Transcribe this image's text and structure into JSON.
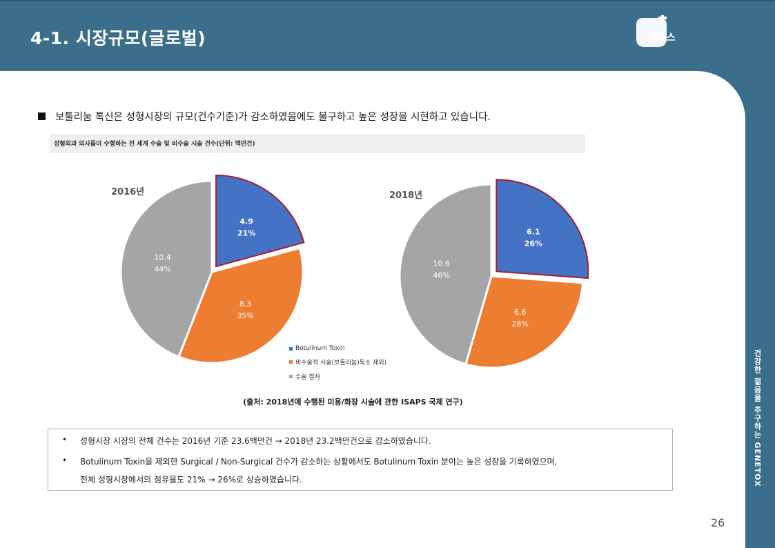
{
  "slide": {
    "title": "4-1. 시장규모(글로벌)",
    "logo_text": "제녹스",
    "side_caption": "건강한 젊음을 추구하는 GENETOX",
    "page_number": "26",
    "headline": "보툴리눔 톡신은 성형시장의 규모(건수기준)가 감소하였음에도 불구하고 높은 성장을 시현하고 있습니다.",
    "chart_heading": "성형외과 의사들이 수행하는 전 세계 수술 및 비수술 시술 건수(단위: 백만건)",
    "source": "(출처: 2018년에 수행된 미용/화장 시술에 관한 ISAPS 국제 연구)",
    "notes": [
      "성형시장 시장의 전체 건수는 2016년 기준 23.6백만건 → 2018년 23.2백만건으로 감소하였습니다.",
      "Botulinum Toxin을 제외한 Surgical / Non-Surgical 건수가 감소하는 상황에서도 Botulinum Toxin 분야는 높은 성장을 기록하였으며,",
      "전체 성형시장에서의 점유율도 21% → 26%로 상승하였습니다."
    ],
    "bullet": "•"
  },
  "chart_data": [
    {
      "type": "pie",
      "title": "2016년",
      "categories": [
        "Botulinum Toxin",
        "비수술적 시술(보툴리눔)독소 제외)",
        "수술 절차"
      ],
      "values": [
        4.9,
        8.3,
        10.4
      ],
      "percent_labels": [
        "21%",
        "35%",
        "44%"
      ],
      "value_labels": [
        "4.9",
        "8.3",
        "10.4"
      ],
      "colors": [
        "#4472c4",
        "#ed7d31",
        "#a5a5a5"
      ],
      "exploded": "Botulinum Toxin"
    },
    {
      "type": "pie",
      "title": "2018년",
      "categories": [
        "Botulinum Toxin",
        "비수술적 시술(보툴리눔)독소 제외)",
        "수술 절차"
      ],
      "values": [
        6.1,
        6.6,
        10.6
      ],
      "percent_labels": [
        "26%",
        "28%",
        "46%"
      ],
      "value_labels": [
        "6.1",
        "6.6",
        "10.6"
      ],
      "colors": [
        "#4472c4",
        "#ed7d31",
        "#a5a5a5"
      ],
      "exploded": "Botulinum Toxin"
    }
  ],
  "legend": {
    "placement": "between-charts-bottom",
    "items": [
      {
        "label": "Botulinum Toxin",
        "color": "#4472c4"
      },
      {
        "label": "비수술적 시술(보툴리눔)독소 제외)",
        "color": "#ed7d31"
      },
      {
        "label": "수술 절차",
        "color": "#a5a5a5"
      }
    ]
  },
  "colors": {
    "brand": "#3a6e8a",
    "highlight_border": "#a3212a"
  }
}
